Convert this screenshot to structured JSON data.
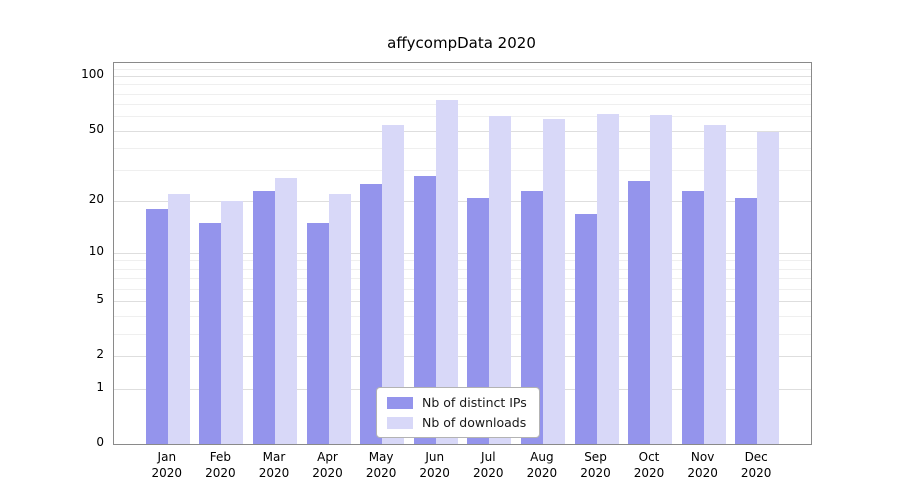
{
  "chart_data": {
    "type": "bar",
    "title": "affycompData 2020",
    "scale": "log1p",
    "categories": [
      "Jan 2020",
      "Feb 2020",
      "Mar 2020",
      "Apr 2020",
      "May 2020",
      "Jun 2020",
      "Jul 2020",
      "Aug 2020",
      "Sep 2020",
      "Oct 2020",
      "Nov 2020",
      "Dec 2020"
    ],
    "series": [
      {
        "name": "Nb of distinct IPs",
        "color": "#9494ec",
        "values": [
          18,
          15,
          23,
          15,
          25,
          28,
          21,
          23,
          17,
          26,
          23,
          21
        ]
      },
      {
        "name": "Nb of downloads",
        "color": "#d8d8f8",
        "values": [
          22,
          20,
          27,
          22,
          54,
          74,
          60,
          58,
          62,
          61,
          54,
          49
        ]
      }
    ],
    "yticks": [
      0,
      1,
      2,
      5,
      10,
      20,
      50,
      100
    ],
    "ylim": [
      0,
      118
    ],
    "xlabel": "",
    "ylabel": "",
    "grid": "horizontal",
    "legend_position": "lower-center-inside"
  }
}
